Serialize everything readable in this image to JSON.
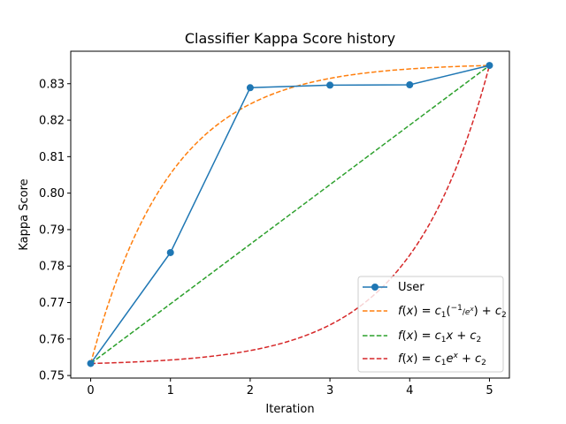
{
  "chart_data": {
    "type": "line",
    "title": "Classifier Kappa Score history",
    "xlabel": "Iteration",
    "ylabel": "Kappa Score",
    "xlim": [
      -0.25,
      5.25
    ],
    "ylim": [
      0.7493,
      0.8389
    ],
    "xticks": [
      0,
      1,
      2,
      3,
      4,
      5
    ],
    "yticks": [
      0.75,
      0.76,
      0.77,
      0.78,
      0.79,
      0.8,
      0.81,
      0.82,
      0.83
    ],
    "ytick_labels": [
      "0.75",
      "0.76",
      "0.77",
      "0.78",
      "0.79",
      "0.80",
      "0.81",
      "0.82",
      "0.83"
    ],
    "grid": false,
    "legend_position": "lower-right",
    "series": [
      {
        "name": "User",
        "style": "solid-marker",
        "color": "#1f77b4",
        "x": [
          0,
          1,
          2,
          3,
          4,
          5
        ],
        "y": [
          0.7533,
          0.7837,
          0.8289,
          0.8296,
          0.8297,
          0.835
        ]
      },
      {
        "name": "f(x) = c1(-1/e^x) + c2",
        "style": "dashed",
        "color": "#ff7f0e",
        "fit": "neg-exp",
        "x_range": [
          0,
          5
        ],
        "y_at_start": 0.7533,
        "y_at_end": 0.835
      },
      {
        "name": "f(x) = c1x + c2",
        "style": "dashed",
        "color": "#2ca02c",
        "fit": "linear",
        "x_range": [
          0,
          5
        ],
        "y_at_start": 0.7533,
        "y_at_end": 0.835
      },
      {
        "name": "f(x) = c1e^x + c2",
        "style": "dashed",
        "color": "#d62728",
        "fit": "exp",
        "x_range": [
          0,
          5
        ],
        "y_at_start": 0.7533,
        "y_at_end": 0.835
      }
    ]
  }
}
